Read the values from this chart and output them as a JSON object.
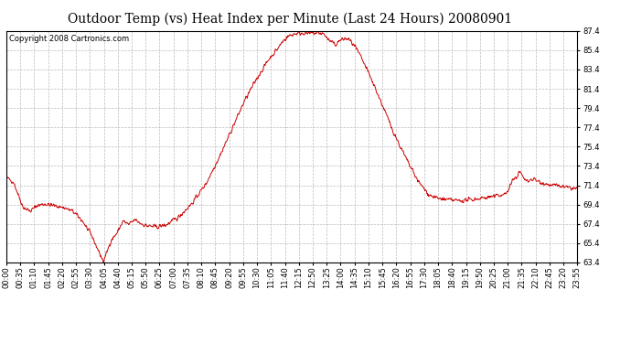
{
  "title": "Outdoor Temp (vs) Heat Index per Minute (Last 24 Hours) 20080901",
  "copyright": "Copyright 2008 Cartronics.com",
  "line_color": "#cc0000",
  "bg_color": "#ffffff",
  "plot_bg_color": "#ffffff",
  "grid_color": "#bbbbbb",
  "ylim": [
    63.4,
    87.4
  ],
  "yticks": [
    63.4,
    65.4,
    67.4,
    69.4,
    71.4,
    73.4,
    75.4,
    77.4,
    79.4,
    81.4,
    83.4,
    85.4,
    87.4
  ],
  "xtick_labels": [
    "00:00",
    "00:35",
    "01:10",
    "01:45",
    "02:20",
    "02:55",
    "03:30",
    "04:05",
    "04:40",
    "05:15",
    "05:50",
    "06:25",
    "07:00",
    "07:35",
    "08:10",
    "08:45",
    "09:20",
    "09:55",
    "10:30",
    "11:05",
    "11:40",
    "12:15",
    "12:50",
    "13:25",
    "14:00",
    "14:35",
    "15:10",
    "15:45",
    "16:20",
    "16:55",
    "17:30",
    "18:05",
    "18:40",
    "19:15",
    "19:50",
    "20:25",
    "21:00",
    "21:35",
    "22:10",
    "22:45",
    "23:20",
    "23:55"
  ],
  "title_fontsize": 10,
  "tick_fontsize": 6,
  "copyright_fontsize": 6
}
